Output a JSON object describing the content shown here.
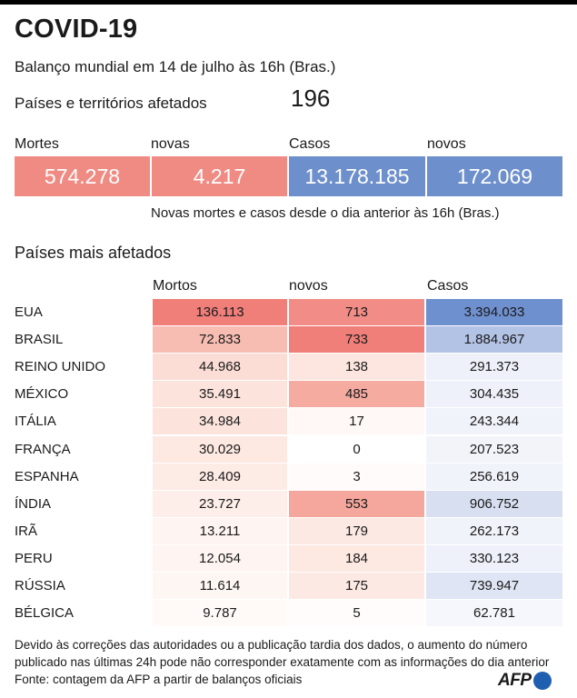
{
  "title": "COVID-19",
  "subtitle": "Balanço mundial em 14 de julho às 16h (Bras.)",
  "affected": {
    "label": "Países e territórios afetados",
    "value": "196"
  },
  "summary": {
    "labels": [
      "Mortes",
      "novas",
      "Casos",
      "novos"
    ],
    "values": [
      "574.278",
      "4.217",
      "13.178.185",
      "172.069"
    ],
    "colors": [
      "#f08b84",
      "#f08b84",
      "#6d8fcc",
      "#6d8fcc"
    ],
    "note": "Novas mortes e casos desde o dia anterior às 16h (Bras.)"
  },
  "table": {
    "section_title": "Países mais afetados",
    "headers": [
      "Mortos",
      "novos",
      "Casos"
    ],
    "rows": [
      {
        "country": "EUA",
        "deaths": "136.113",
        "new_deaths": "713",
        "cases": "3.394.033"
      },
      {
        "country": "BRASIL",
        "deaths": "72.833",
        "new_deaths": "733",
        "cases": "1.884.967"
      },
      {
        "country": "REINO UNIDO",
        "deaths": "44.968",
        "new_deaths": "138",
        "cases": "291.373"
      },
      {
        "country": "MÉXICO",
        "deaths": "35.491",
        "new_deaths": "485",
        "cases": "304.435"
      },
      {
        "country": "ITÁLIA",
        "deaths": "34.984",
        "new_deaths": "17",
        "cases": "243.344"
      },
      {
        "country": "FRANÇA",
        "deaths": "30.029",
        "new_deaths": "0",
        "cases": "207.523"
      },
      {
        "country": "ESPANHA",
        "deaths": "28.409",
        "new_deaths": "3",
        "cases": "256.619"
      },
      {
        "country": "ÍNDIA",
        "deaths": "23.727",
        "new_deaths": "553",
        "cases": "906.752"
      },
      {
        "country": "IRÃ",
        "deaths": "13.211",
        "new_deaths": "179",
        "cases": "262.173"
      },
      {
        "country": "PERU",
        "deaths": "12.054",
        "new_deaths": "184",
        "cases": "330.123"
      },
      {
        "country": "RÚSSIA",
        "deaths": "11.614",
        "new_deaths": "175",
        "cases": "739.947"
      },
      {
        "country": "BÉLGICA",
        "deaths": "9.787",
        "new_deaths": "5",
        "cases": "62.781"
      }
    ],
    "row_colors": [
      {
        "deaths": "#f07f7a",
        "new_deaths": "#f28c86",
        "cases": "#6f90cf"
      },
      {
        "deaths": "#f7bdb2",
        "new_deaths": "#f07f7a",
        "cases": "#b3c3e6"
      },
      {
        "deaths": "#fbddd5",
        "new_deaths": "#fde6df",
        "cases": "#eef1fa"
      },
      {
        "deaths": "#fce3dc",
        "new_deaths": "#f6aba1",
        "cases": "#eef1fa"
      },
      {
        "deaths": "#fce4dd",
        "new_deaths": "#fff8f6",
        "cases": "#f1f3fa"
      },
      {
        "deaths": "#fde8e2",
        "new_deaths": "#ffffff",
        "cases": "#f2f4fa"
      },
      {
        "deaths": "#fdebe5",
        "new_deaths": "#fffbfa",
        "cases": "#f1f3fa"
      },
      {
        "deaths": "#fdeee9",
        "new_deaths": "#f5a79d",
        "cases": "#d7dff1"
      },
      {
        "deaths": "#fef4f1",
        "new_deaths": "#fde9e3",
        "cases": "#f1f3fa"
      },
      {
        "deaths": "#fef5f2",
        "new_deaths": "#fde8e2",
        "cases": "#eef1fa"
      },
      {
        "deaths": "#fef6f3",
        "new_deaths": "#fde9e3",
        "cases": "#dfe5f4"
      },
      {
        "deaths": "#fffaf8",
        "new_deaths": "#fffcfb",
        "cases": "#f6f7fc"
      }
    ]
  },
  "footnote": "Devido às correções das autoridades ou a publicação tardia dos dados, o aumento do número publicado nas últimas 24h pode não corresponder exatamente com as informações do dia anterior",
  "source": "Fonte: contagem da  AFP a partir de balanços oficiais",
  "logo": {
    "text": "AFP",
    "dot_color": "#1f5fb0"
  }
}
